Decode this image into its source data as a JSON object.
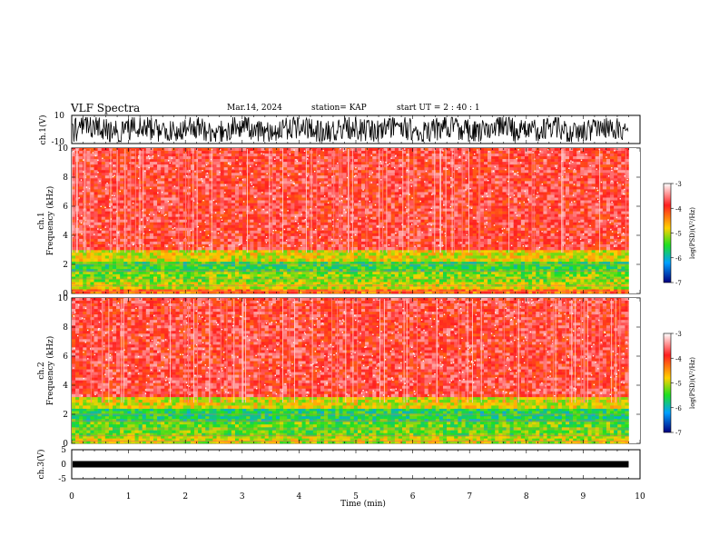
{
  "header": {
    "title": "VLF Spectra",
    "date": "Mar.14, 2024",
    "station": "station= KAP",
    "start_ut": "start  UT =   2 : 40 : 1"
  },
  "chart_data": [
    {
      "type": "line",
      "panel": "ch1-waveform",
      "ylabel": "ch.1(V)",
      "ylim": [
        -10,
        10
      ],
      "yticks": [
        "10",
        "-10"
      ],
      "xlim": [
        0,
        10
      ],
      "description_series": "noisy waveform between about -8 and 8 V over 0–9.8 min"
    },
    {
      "type": "heatmap",
      "panel": "ch1-spectrogram",
      "ylabel": "ch.1\nFrequency (kHz)",
      "ylim": [
        0,
        10
      ],
      "yticks": [
        "0",
        "2",
        "4",
        "6",
        "8",
        "10"
      ],
      "xlim": [
        0,
        10
      ],
      "data_end_min": 9.8,
      "colorbar": {
        "label": "log(PSD)(V²/Hz)",
        "range": [
          -7,
          -3
        ],
        "ticks": [
          "-3",
          "-4",
          "-5",
          "-6",
          "-7"
        ]
      },
      "bands_khz": [
        {
          "from": 0,
          "to": 0.3,
          "level": -4.3
        },
        {
          "from": 0.3,
          "to": 0.8,
          "level": -5.0
        },
        {
          "from": 0.8,
          "to": 1.5,
          "level": -5.2
        },
        {
          "from": 1.5,
          "to": 2.2,
          "level": -5.5
        },
        {
          "from": 2.2,
          "to": 3.0,
          "level": -4.9
        },
        {
          "from": 3.0,
          "to": 10,
          "level": -3.8
        }
      ]
    },
    {
      "type": "heatmap",
      "panel": "ch2-spectrogram",
      "ylabel": "ch.2\nFrequency (kHz)",
      "ylim": [
        0,
        10
      ],
      "yticks": [
        "0",
        "2",
        "4",
        "6",
        "8",
        "10"
      ],
      "xlim": [
        0,
        10
      ],
      "data_end_min": 9.8,
      "colorbar": {
        "label": "log(PSD)(V²/Hz)",
        "range": [
          -7,
          -3
        ],
        "ticks": [
          "-3",
          "-4",
          "-5",
          "-6",
          "-7"
        ]
      },
      "bands_khz": [
        {
          "from": 0,
          "to": 0.5,
          "level": -5.0
        },
        {
          "from": 0.5,
          "to": 1.5,
          "level": -5.3
        },
        {
          "from": 1.5,
          "to": 2.4,
          "level": -5.6
        },
        {
          "from": 2.4,
          "to": 3.2,
          "level": -4.9
        },
        {
          "from": 3.2,
          "to": 10,
          "level": -3.8
        }
      ]
    },
    {
      "type": "line",
      "panel": "ch3-waveform",
      "ylabel": "ch.3(V)",
      "ylim": [
        -5,
        5
      ],
      "yticks": [
        "5",
        "0",
        "-5"
      ],
      "xlim": [
        0,
        10
      ],
      "xlabel": "Time (min)",
      "xticks": [
        "0",
        "1",
        "2",
        "3",
        "4",
        "5",
        "6",
        "7",
        "8",
        "9",
        "10"
      ],
      "description_series": "dense oscillation between about -1 and 1 V"
    }
  ]
}
